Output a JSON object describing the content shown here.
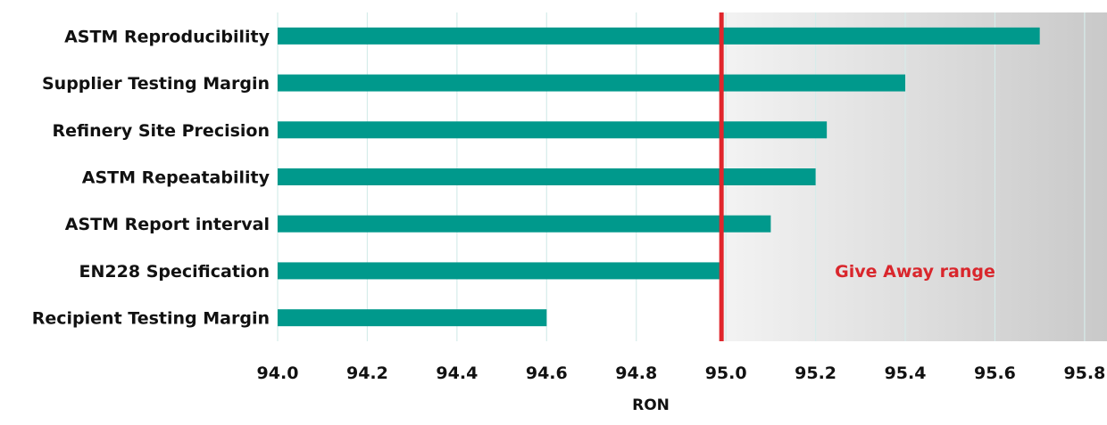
{
  "chart_data": {
    "type": "bar",
    "orientation": "horizontal",
    "categories": [
      "ASTM Reproducibility",
      "Supplier Testing Margin",
      "Refinery Site Precision",
      "ASTM Repeatability",
      "ASTM Report interval",
      "EN228 Specification",
      "Recipient Testing Margin"
    ],
    "values": [
      95.7,
      95.4,
      95.225,
      95.2,
      95.1,
      94.99,
      94.6
    ],
    "xlim": [
      94.0,
      95.85
    ],
    "xticks": [
      "94.0",
      "94.2",
      "94.4",
      "94.6",
      "94.8",
      "95.0",
      "95.2",
      "95.4",
      "95.6",
      "95.8"
    ],
    "xlabel": "RON",
    "ylabel": "",
    "grid": true,
    "reference_line": {
      "value": 94.99,
      "color": "#e0262c"
    },
    "shaded_region": {
      "from": 94.99,
      "to": 95.85,
      "label": "Give Away range",
      "label_color": "#d9262c"
    },
    "colors": {
      "bar": "#00998c",
      "grid": "#d6ecea",
      "shade_start": "#f3f3f3",
      "shade_end": "#c9c9c9"
    }
  }
}
